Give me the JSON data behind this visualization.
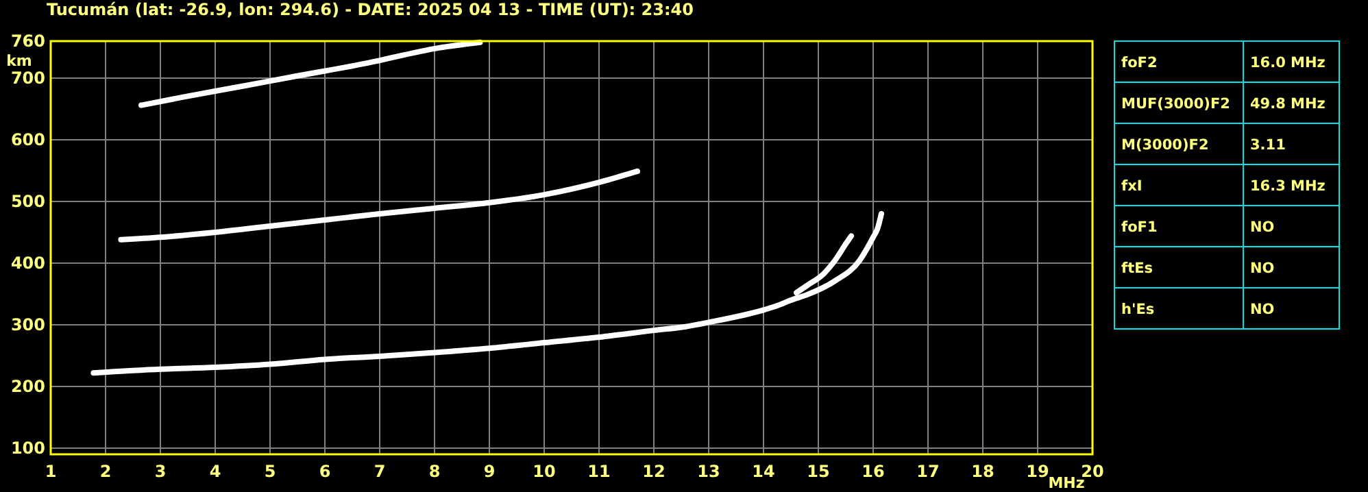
{
  "chart_data": [
    {
      "type": "line",
      "title": "Tucumán (lat: -26.9, lon: 294.6) - DATE: 2025 04 13 - TIME (UT): 23:40",
      "xlabel": "MHz",
      "ylabel": "km",
      "xlim": [
        1,
        20
      ],
      "xticks": [
        1,
        2,
        3,
        4,
        5,
        6,
        7,
        8,
        9,
        10,
        11,
        12,
        13,
        14,
        15,
        16,
        17,
        18,
        19,
        20
      ],
      "ylim": [
        90,
        760
      ],
      "yticks": [
        100,
        200,
        300,
        400,
        500,
        600,
        700,
        760
      ],
      "grid": true,
      "marker": "none",
      "line_style": "solid",
      "series": [
        {
          "color": "#ffffff",
          "x": [
            1.78,
            3,
            4,
            5,
            6,
            7,
            8,
            9,
            10,
            11,
            12,
            12.58,
            13,
            14,
            14.25,
            14.5,
            14.8,
            15.3,
            15.75,
            16.0,
            16.08,
            16.15
          ],
          "values": [
            222,
            228,
            231,
            236,
            244,
            249,
            255,
            262,
            271,
            280,
            291,
            297,
            304,
            324,
            331,
            340,
            349,
            371,
            404,
            442,
            456,
            480
          ]
        },
        {
          "color": "#ffffff",
          "x": [
            14.6,
            14.8,
            15.1,
            15.3,
            15.5,
            15.6
          ],
          "values": [
            352,
            364,
            383,
            404,
            431,
            444
          ]
        },
        {
          "color": "#ffffff",
          "x": [
            2.28,
            3,
            4,
            5,
            6,
            7,
            8,
            9,
            10,
            11,
            11.7
          ],
          "values": [
            438,
            442,
            450,
            460,
            470,
            480,
            489,
            498,
            511,
            531,
            549
          ]
        },
        {
          "color": "#ffffff",
          "x": [
            2.65,
            3.4,
            4.5,
            5.4,
            6.75,
            8.08,
            8.83
          ],
          "values": [
            656,
            669,
            687,
            702,
            724,
            749,
            758
          ]
        }
      ]
    },
    {
      "type": "other",
      "annotations": [
        "foF2",
        "16.0 MHz",
        "MUF(3000)F2",
        "49.8 MHz",
        "M(3000)F2",
        "3.11",
        "fxI",
        "16.3 MHz",
        "foF1",
        "NO",
        "ftEs",
        "NO",
        "h'Es",
        "NO"
      ]
    }
  ]
}
